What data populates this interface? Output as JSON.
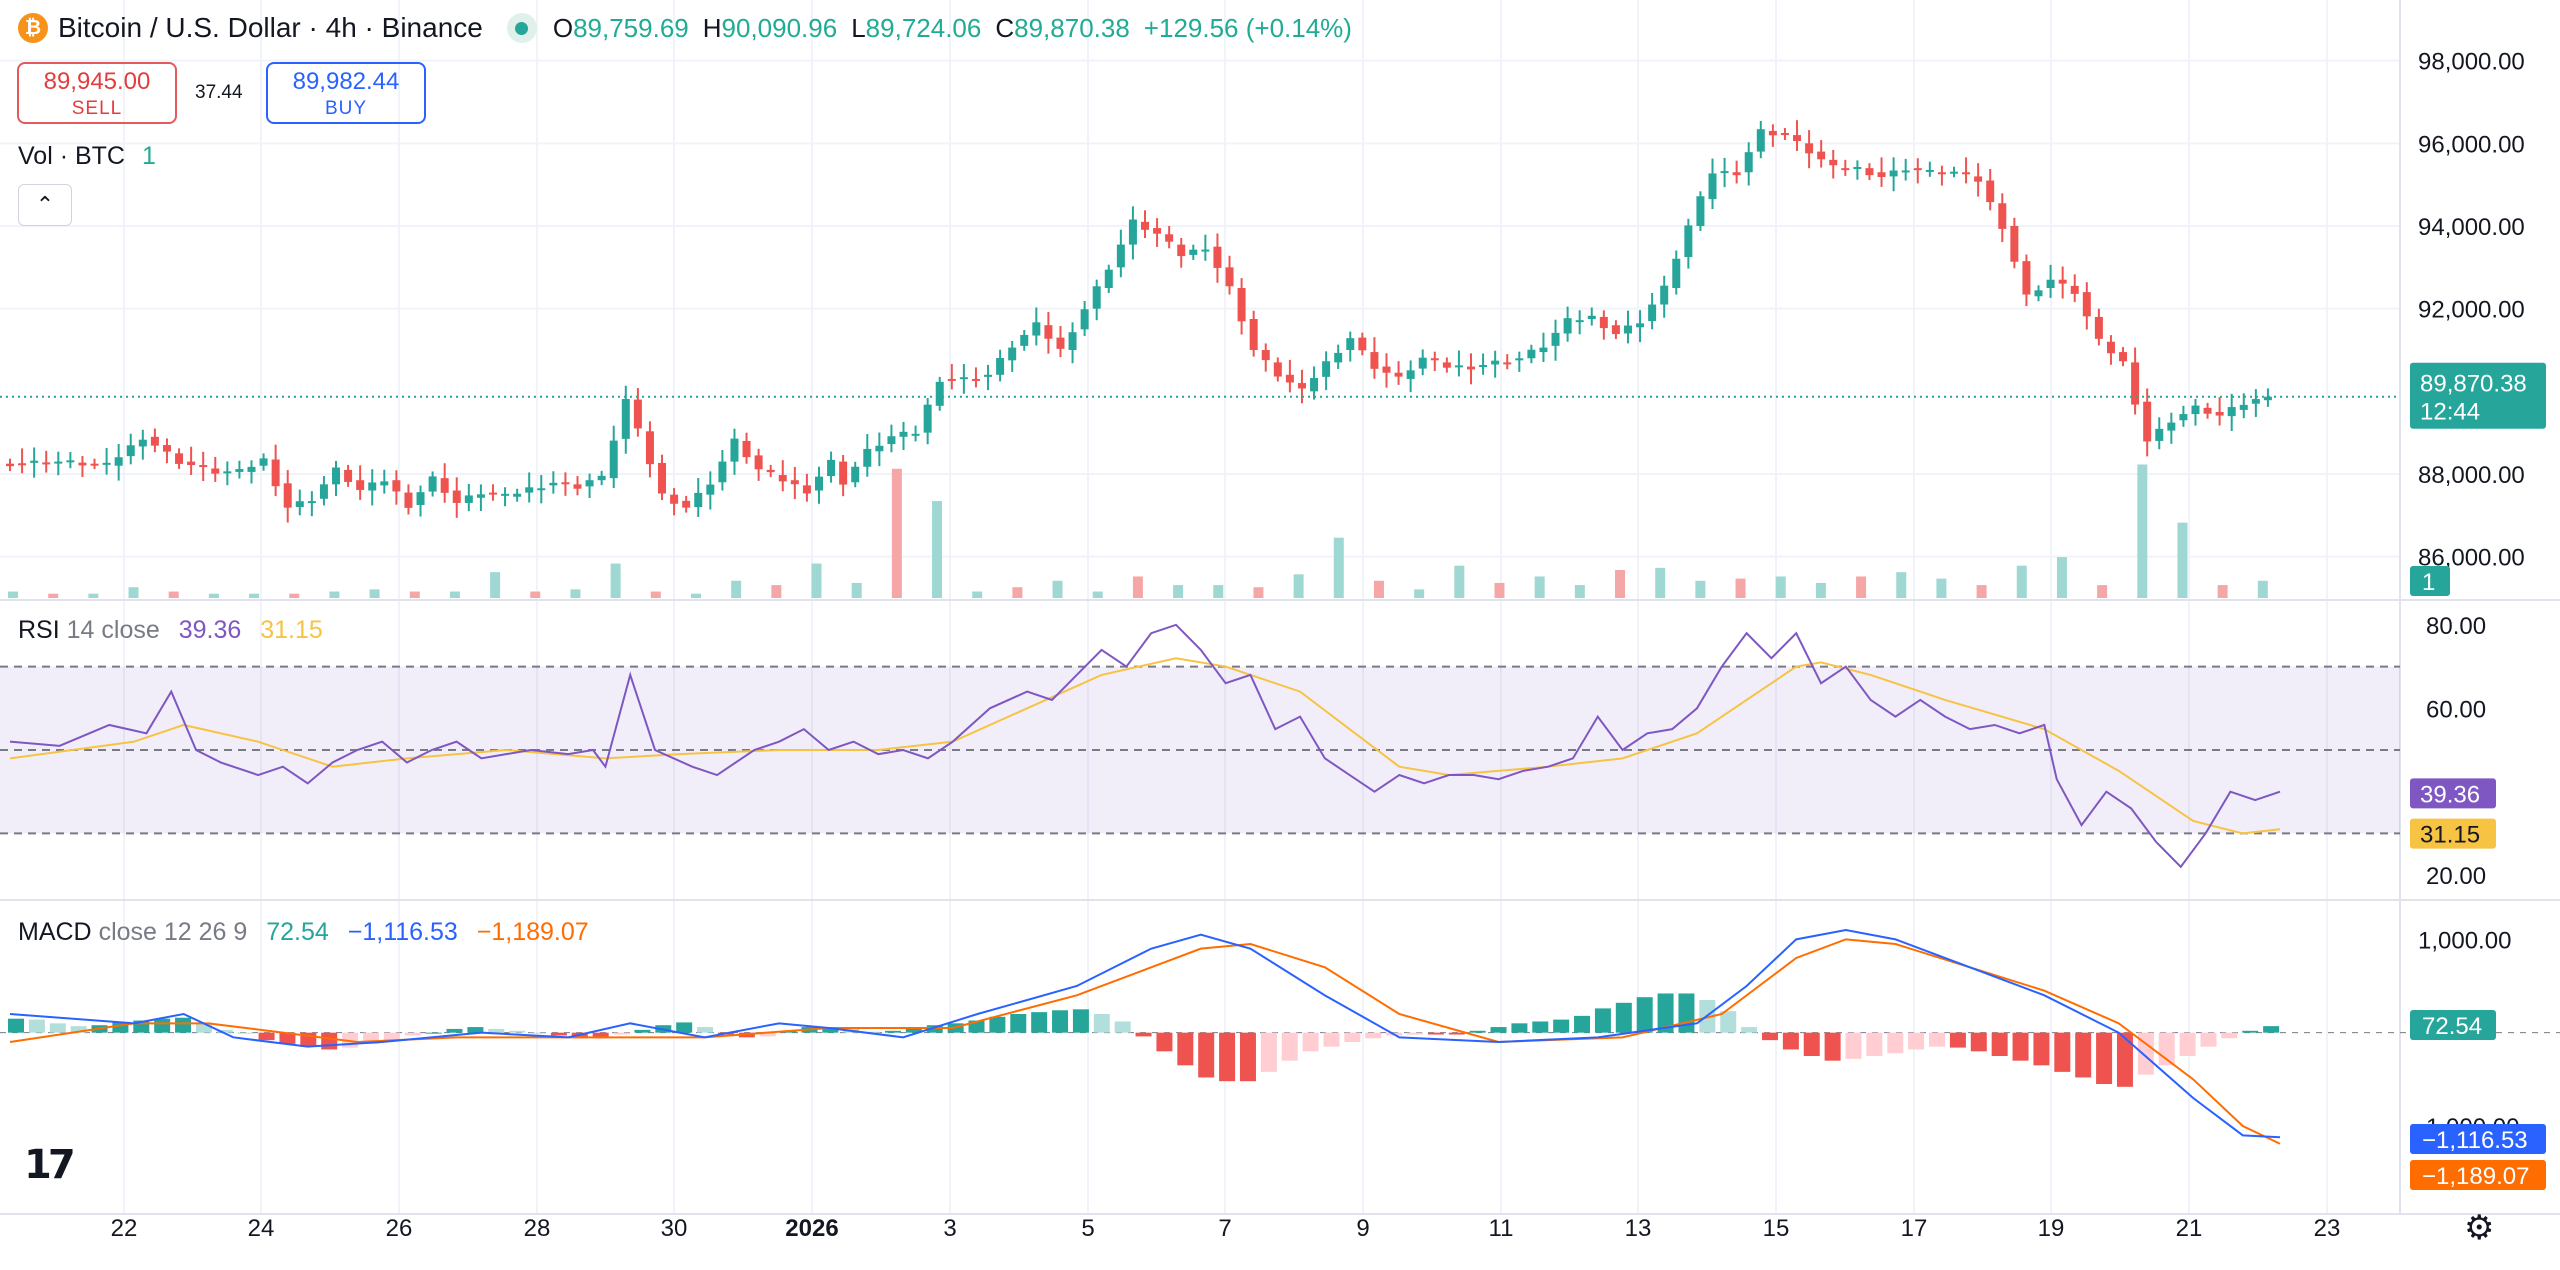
{
  "header": {
    "coin_icon_glyph": "₿",
    "title": "Bitcoin / U.S. Dollar · 4h · Binance",
    "ohlc": [
      {
        "k": "O",
        "v": "89,759.69"
      },
      {
        "k": "H",
        "v": "90,090.96"
      },
      {
        "k": "L",
        "v": "89,724.06"
      },
      {
        "k": "C",
        "v": "89,870.38"
      },
      {
        "k": "",
        "v": "+129.56 (+0.14%)"
      }
    ]
  },
  "trade": {
    "sell_price": "89,945.00",
    "sell_label": "SELL",
    "spread": "37.44",
    "buy_price": "89,982.44",
    "buy_label": "BUY"
  },
  "volume_label": {
    "name": "Vol · BTC",
    "value": "1"
  },
  "collapse_glyph": "⌃",
  "rsi_label": {
    "name": "RSI",
    "params": "14 close",
    "rsi": "39.36",
    "ma": "31.15"
  },
  "macd_label": {
    "name": "MACD",
    "params": "close 12 26 9",
    "hist": "72.54",
    "macd": "−1,116.53",
    "signal": "−1,189.07"
  },
  "logo_text": "17",
  "settings_glyph": "⚙",
  "colors": {
    "up": "#26a69a",
    "down": "#ef5350",
    "rsi": "#7e57c2",
    "rsi_ma": "#f6c343",
    "macd": "#2962ff",
    "signal": "#ff6d00",
    "hist_up": "#26a69a",
    "hist_down": "#ef5350"
  },
  "chart_data": {
    "type": "candlestick",
    "title": "Bitcoin / U.S. Dollar · 4h · Binance",
    "x_ticks": [
      "22",
      "24",
      "26",
      "28",
      "30",
      "2026",
      "3",
      "5",
      "7",
      "9",
      "11",
      "13",
      "15",
      "17",
      "19",
      "21",
      "23"
    ],
    "price_axis": {
      "ticks": [
        "98,000.00",
        "96,000.00",
        "94,000.00",
        "92,000.00",
        "88,000.00",
        "86,000.00"
      ],
      "ylim": [
        85000,
        98500
      ]
    },
    "last_price": {
      "value": "89,870.38",
      "countdown": "12:44"
    },
    "volume_badge": "1",
    "price_path": [
      [
        0,
        88250
      ],
      [
        5,
        88300
      ],
      [
        9,
        88200
      ],
      [
        12,
        88900
      ],
      [
        15,
        88300
      ],
      [
        18,
        88050
      ],
      [
        20,
        88050
      ],
      [
        22,
        88350
      ],
      [
        24,
        87200
      ],
      [
        26,
        87400
      ],
      [
        28,
        88100
      ],
      [
        30,
        87600
      ],
      [
        32,
        87850
      ],
      [
        34,
        87250
      ],
      [
        36,
        87900
      ],
      [
        38,
        87300
      ],
      [
        40,
        87550
      ],
      [
        42,
        87450
      ],
      [
        44,
        87650
      ],
      [
        46,
        87800
      ],
      [
        48,
        87700
      ],
      [
        49,
        87850
      ],
      [
        50,
        87900
      ],
      [
        52,
        89800
      ],
      [
        55,
        87500
      ],
      [
        57,
        87200
      ],
      [
        59,
        87800
      ],
      [
        61,
        88800
      ],
      [
        63,
        88100
      ],
      [
        65,
        87850
      ],
      [
        67,
        87600
      ],
      [
        69,
        88300
      ],
      [
        70,
        87800
      ],
      [
        72,
        88550
      ],
      [
        74,
        88900
      ],
      [
        76,
        89000
      ],
      [
        78,
        90300
      ],
      [
        80,
        90300
      ],
      [
        82,
        90400
      ],
      [
        84,
        91100
      ],
      [
        86,
        91600
      ],
      [
        88,
        91000
      ],
      [
        90,
        92000
      ],
      [
        92,
        93000
      ],
      [
        94,
        94100
      ],
      [
        96,
        93800
      ],
      [
        98,
        93300
      ],
      [
        100,
        93500
      ],
      [
        102,
        92500
      ],
      [
        104,
        91000
      ],
      [
        106,
        90400
      ],
      [
        108,
        90000
      ],
      [
        110,
        90700
      ],
      [
        112,
        91300
      ],
      [
        114,
        90600
      ],
      [
        116,
        90300
      ],
      [
        118,
        90800
      ],
      [
        120,
        90600
      ],
      [
        122,
        90600
      ],
      [
        124,
        90700
      ],
      [
        126,
        90800
      ],
      [
        128,
        91100
      ],
      [
        130,
        91700
      ],
      [
        132,
        91800
      ],
      [
        134,
        91400
      ],
      [
        136,
        91700
      ],
      [
        138,
        92500
      ],
      [
        140,
        94000
      ],
      [
        142,
        95300
      ],
      [
        144,
        95300
      ],
      [
        146,
        96300
      ],
      [
        148,
        96200
      ],
      [
        150,
        95800
      ],
      [
        152,
        95400
      ],
      [
        154,
        95400
      ],
      [
        156,
        95200
      ],
      [
        158,
        95400
      ],
      [
        160,
        95300
      ],
      [
        162,
        95300
      ],
      [
        164,
        95100
      ],
      [
        166,
        94000
      ],
      [
        168,
        92300
      ],
      [
        170,
        92700
      ],
      [
        172,
        92400
      ],
      [
        174,
        91200
      ],
      [
        176,
        90700
      ],
      [
        178,
        88800
      ],
      [
        180,
        89300
      ],
      [
        182,
        89600
      ],
      [
        184,
        89400
      ],
      [
        186,
        89700
      ],
      [
        188,
        89870
      ]
    ],
    "volume": [
      0.3,
      0.2,
      0.2,
      0.5,
      0.3,
      0.2,
      0.2,
      0.2,
      0.3,
      0.4,
      0.3,
      0.3,
      1.2,
      0.3,
      0.4,
      1.6,
      0.3,
      0.2,
      0.8,
      0.6,
      1.6,
      0.7,
      6.0,
      4.5,
      0.3,
      0.5,
      0.8,
      0.3,
      1.0,
      0.6,
      0.6,
      0.5,
      1.1,
      2.8,
      0.8,
      0.4,
      1.5,
      0.7,
      1.0,
      0.6,
      1.3,
      1.4,
      0.8,
      0.9,
      1.0,
      0.7,
      1.0,
      1.2,
      0.9,
      0.6,
      1.5,
      1.9,
      0.6,
      6.2,
      3.5,
      0.6,
      0.8
    ],
    "volume_ylim": [
      0,
      6.5
    ],
    "rsi": {
      "period": 14,
      "levels": [
        70,
        50,
        30
      ],
      "ylim": [
        15,
        85
      ],
      "ticks": [
        "80.00",
        "60.00",
        "20.00"
      ],
      "rsi_value": "39.36",
      "ma_value": "31.15",
      "rsi_path": [
        [
          0,
          52
        ],
        [
          4,
          51
        ],
        [
          8,
          56
        ],
        [
          11,
          54
        ],
        [
          13,
          64
        ],
        [
          15,
          50
        ],
        [
          17,
          47
        ],
        [
          20,
          44
        ],
        [
          22,
          46
        ],
        [
          24,
          42
        ],
        [
          26,
          47
        ],
        [
          28,
          50
        ],
        [
          30,
          52
        ],
        [
          32,
          47
        ],
        [
          34,
          50
        ],
        [
          36,
          52
        ],
        [
          38,
          48
        ],
        [
          40,
          49
        ],
        [
          42,
          50
        ],
        [
          45,
          49
        ],
        [
          47,
          50
        ],
        [
          48,
          46
        ],
        [
          50,
          68
        ],
        [
          52,
          50
        ],
        [
          55,
          46
        ],
        [
          57,
          44
        ],
        [
          60,
          50
        ],
        [
          62,
          52
        ],
        [
          64,
          55
        ],
        [
          66,
          50
        ],
        [
          68,
          52
        ],
        [
          70,
          49
        ],
        [
          72,
          50
        ],
        [
          74,
          48
        ],
        [
          76,
          52
        ],
        [
          79,
          60
        ],
        [
          82,
          64
        ],
        [
          84,
          62
        ],
        [
          86,
          68
        ],
        [
          88,
          74
        ],
        [
          90,
          70
        ],
        [
          92,
          78
        ],
        [
          94,
          80
        ],
        [
          96,
          74
        ],
        [
          98,
          66
        ],
        [
          100,
          68
        ],
        [
          102,
          55
        ],
        [
          104,
          58
        ],
        [
          106,
          48
        ],
        [
          108,
          44
        ],
        [
          110,
          40
        ],
        [
          112,
          44
        ],
        [
          114,
          42
        ],
        [
          116,
          44
        ],
        [
          118,
          44
        ],
        [
          120,
          43
        ],
        [
          122,
          45
        ],
        [
          124,
          46
        ],
        [
          126,
          48
        ],
        [
          128,
          58
        ],
        [
          130,
          50
        ],
        [
          132,
          54
        ],
        [
          134,
          55
        ],
        [
          136,
          60
        ],
        [
          138,
          70
        ],
        [
          140,
          78
        ],
        [
          142,
          72
        ],
        [
          144,
          78
        ],
        [
          146,
          66
        ],
        [
          148,
          70
        ],
        [
          150,
          62
        ],
        [
          152,
          58
        ],
        [
          154,
          62
        ],
        [
          156,
          58
        ],
        [
          158,
          55
        ],
        [
          160,
          56
        ],
        [
          162,
          54
        ],
        [
          164,
          56
        ],
        [
          165,
          43
        ],
        [
          167,
          32
        ],
        [
          169,
          40
        ],
        [
          171,
          36
        ],
        [
          173,
          28
        ],
        [
          175,
          22
        ],
        [
          177,
          30
        ],
        [
          179,
          40
        ],
        [
          181,
          38
        ],
        [
          183,
          40
        ]
      ],
      "ma_path": [
        [
          0,
          48
        ],
        [
          10,
          52
        ],
        [
          14,
          56
        ],
        [
          20,
          52
        ],
        [
          26,
          46
        ],
        [
          32,
          48
        ],
        [
          40,
          50
        ],
        [
          48,
          48
        ],
        [
          54,
          49
        ],
        [
          62,
          50
        ],
        [
          70,
          50
        ],
        [
          76,
          52
        ],
        [
          82,
          60
        ],
        [
          88,
          68
        ],
        [
          94,
          72
        ],
        [
          98,
          70
        ],
        [
          104,
          64
        ],
        [
          108,
          55
        ],
        [
          112,
          46
        ],
        [
          116,
          44
        ],
        [
          124,
          46
        ],
        [
          130,
          48
        ],
        [
          136,
          54
        ],
        [
          140,
          62
        ],
        [
          144,
          70
        ],
        [
          146,
          71
        ],
        [
          150,
          68
        ],
        [
          156,
          62
        ],
        [
          164,
          55
        ],
        [
          170,
          45
        ],
        [
          176,
          33
        ],
        [
          180,
          30
        ],
        [
          183,
          31
        ]
      ]
    },
    "macd": {
      "params": "close 12 26 9",
      "ylim": [
        -1600,
        1400
      ],
      "ticks": [
        "1,000.00",
        "-1,000.00"
      ],
      "hist_value": "72.54",
      "macd_value": "−1,116.53",
      "signal_value": "−1,189.07",
      "macd_path": [
        [
          0,
          200
        ],
        [
          10,
          100
        ],
        [
          14,
          200
        ],
        [
          18,
          -50
        ],
        [
          24,
          -150
        ],
        [
          30,
          -100
        ],
        [
          38,
          0
        ],
        [
          45,
          -50
        ],
        [
          50,
          100
        ],
        [
          56,
          -50
        ],
        [
          62,
          100
        ],
        [
          66,
          50
        ],
        [
          72,
          -50
        ],
        [
          78,
          200
        ],
        [
          86,
          500
        ],
        [
          92,
          900
        ],
        [
          96,
          1050
        ],
        [
          100,
          900
        ],
        [
          106,
          400
        ],
        [
          112,
          -50
        ],
        [
          120,
          -100
        ],
        [
          128,
          -50
        ],
        [
          136,
          100
        ],
        [
          140,
          500
        ],
        [
          144,
          1000
        ],
        [
          148,
          1100
        ],
        [
          152,
          1000
        ],
        [
          158,
          700
        ],
        [
          164,
          400
        ],
        [
          170,
          0
        ],
        [
          176,
          -700
        ],
        [
          180,
          -1100
        ],
        [
          183,
          -1120
        ]
      ],
      "signal_path": [
        [
          0,
          -100
        ],
        [
          10,
          100
        ],
        [
          16,
          100
        ],
        [
          22,
          0
        ],
        [
          28,
          -100
        ],
        [
          36,
          -50
        ],
        [
          46,
          -50
        ],
        [
          56,
          -50
        ],
        [
          66,
          50
        ],
        [
          76,
          50
        ],
        [
          86,
          400
        ],
        [
          92,
          700
        ],
        [
          96,
          900
        ],
        [
          100,
          950
        ],
        [
          106,
          700
        ],
        [
          112,
          200
        ],
        [
          120,
          -100
        ],
        [
          130,
          -50
        ],
        [
          138,
          200
        ],
        [
          144,
          800
        ],
        [
          148,
          1000
        ],
        [
          152,
          950
        ],
        [
          158,
          700
        ],
        [
          164,
          450
        ],
        [
          170,
          100
        ],
        [
          176,
          -500
        ],
        [
          180,
          -1000
        ],
        [
          183,
          -1190
        ]
      ],
      "hist": [
        150,
        140,
        100,
        70,
        80,
        110,
        130,
        150,
        160,
        100,
        30,
        0,
        -80,
        -120,
        -150,
        -180,
        -160,
        -120,
        -80,
        -30,
        0,
        40,
        60,
        40,
        20,
        0,
        -30,
        -60,
        -60,
        -20,
        30,
        80,
        110,
        60,
        -20,
        -50,
        -40,
        20,
        60,
        60,
        40,
        10,
        20,
        60,
        80,
        100,
        130,
        170,
        200,
        220,
        240,
        250,
        200,
        120,
        -40,
        -200,
        -350,
        -480,
        -520,
        -520,
        -420,
        -300,
        -200,
        -150,
        -100,
        -60,
        -30,
        -20,
        -20,
        -20,
        20,
        60,
        100,
        120,
        140,
        180,
        260,
        320,
        380,
        420,
        420,
        350,
        230,
        60,
        -80,
        -180,
        -250,
        -300,
        -280,
        -250,
        -220,
        -180,
        -150,
        -160,
        -200,
        -250,
        -300,
        -350,
        -420,
        -480,
        -550,
        -580,
        -450,
        -350,
        -250,
        -150,
        -60,
        20,
        70
      ]
    }
  }
}
